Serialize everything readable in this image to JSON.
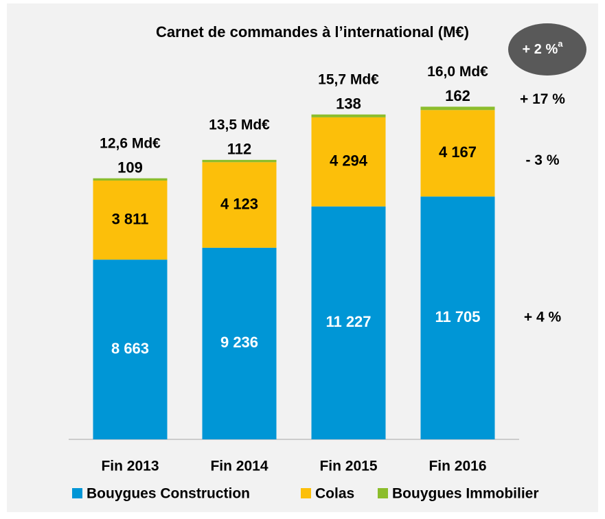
{
  "chart_data": {
    "type": "bar",
    "stacked": true,
    "title": "Carnet de commandes à l’international (M€)",
    "categories": [
      "Fin 2013",
      "Fin 2014",
      "Fin 2015",
      "Fin 2016"
    ],
    "series": [
      {
        "name": "Bouygues Construction",
        "color": "#0096d6",
        "label_color": "#ffffff",
        "values": [
          8663,
          9236,
          11227,
          11705
        ],
        "value_labels": [
          "8 663",
          "9 236",
          "11 227",
          "11 705"
        ]
      },
      {
        "name": "Colas",
        "color": "#fcbf0a",
        "label_color": "#000000",
        "values": [
          3811,
          4123,
          4294,
          4167
        ],
        "value_labels": [
          "3 811",
          "4 123",
          "4 294",
          "4 167"
        ]
      },
      {
        "name": "Bouygues Immobilier",
        "color": "#8cbd2c",
        "label_color": "#000000",
        "values": [
          109,
          112,
          138,
          162
        ],
        "value_labels": [
          "109",
          "112",
          "138",
          "162"
        ]
      }
    ],
    "total_labels": [
      "12,6 Md€",
      "13,5 Md€",
      "15,7 Md€",
      "16,0 Md€"
    ],
    "segment_changes": [
      "+ 4 %",
      "- 3 %",
      "+ 17 %"
    ],
    "badge": {
      "text": "+ 2 %",
      "superscript": "a"
    },
    "ylim": [
      0,
      18000
    ]
  }
}
